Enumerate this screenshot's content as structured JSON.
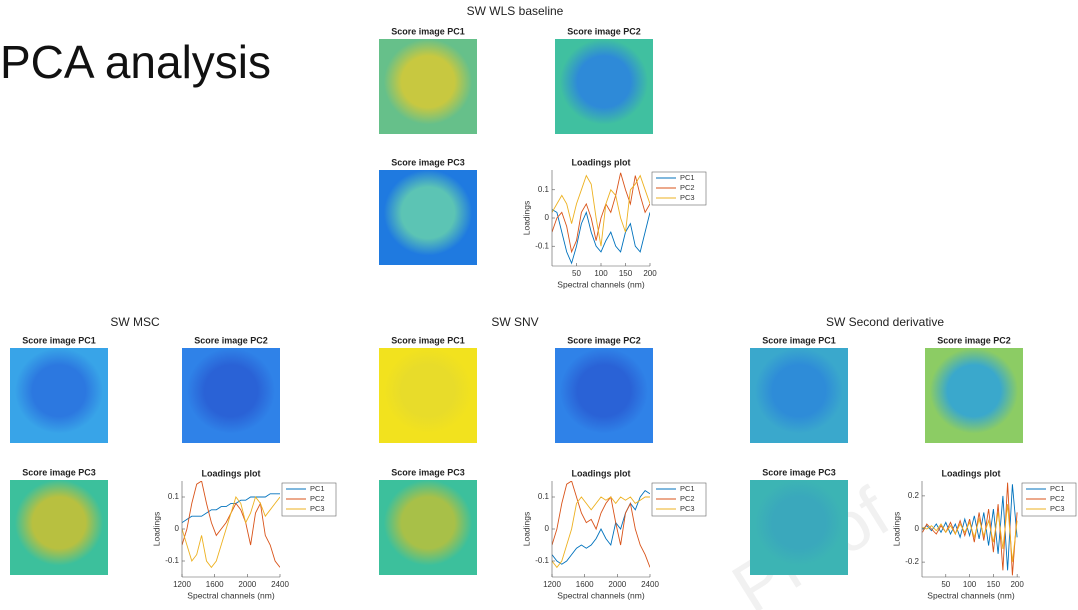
{
  "title": "PCA analysis",
  "watermark": "Proof",
  "panels": [
    {
      "title": "SW WLS baseline",
      "images": [
        "Score image PC1",
        "Score image PC2",
        "Score image PC3"
      ]
    },
    {
      "title": "SW MSC",
      "images": [
        "Score image PC1",
        "Score image PC2",
        "Score image PC3"
      ]
    },
    {
      "title": "SW SNV",
      "images": [
        "Score image PC1",
        "Score image PC2",
        "Score image PC3"
      ]
    },
    {
      "title": "SW Second derivative",
      "images": [
        "Score image PC1",
        "Score image PC2",
        "Score image PC3"
      ]
    }
  ],
  "chart_data": [
    {
      "type": "line",
      "title": "Loadings plot",
      "xlabel": "Spectral channels (nm)",
      "ylabel": "Loadings",
      "x": [
        0,
        10,
        20,
        30,
        40,
        50,
        60,
        70,
        80,
        90,
        100,
        110,
        120,
        130,
        140,
        150,
        160,
        170,
        180,
        190,
        200
      ],
      "xlim": [
        0,
        200
      ],
      "ylim": [
        -0.17,
        0.17
      ],
      "xticks": [
        50,
        100,
        150,
        200
      ],
      "yticks": [
        -0.1,
        0,
        0.1
      ],
      "legend": "right",
      "series": [
        {
          "name": "PC1",
          "color": "#0072bd",
          "values": [
            0.03,
            0.02,
            -0.05,
            -0.12,
            -0.16,
            -0.1,
            -0.02,
            0.02,
            -0.05,
            -0.1,
            -0.12,
            -0.08,
            -0.05,
            -0.1,
            -0.12,
            -0.05,
            -0.02,
            -0.1,
            -0.12,
            -0.05,
            0.02
          ]
        },
        {
          "name": "PC2",
          "color": "#d95319",
          "values": [
            -0.05,
            0.0,
            0.02,
            -0.03,
            -0.12,
            -0.08,
            0.02,
            0.05,
            0.0,
            -0.08,
            0.0,
            0.05,
            0.02,
            0.08,
            0.16,
            0.1,
            0.05,
            0.15,
            0.08,
            0.02,
            0.05
          ]
        },
        {
          "name": "PC3",
          "color": "#edb120",
          "values": [
            0.02,
            0.05,
            0.08,
            0.05,
            -0.02,
            0.05,
            0.1,
            0.15,
            0.12,
            0.0,
            -0.1,
            0.05,
            0.1,
            0.08,
            0.0,
            -0.05,
            0.1,
            0.12,
            0.15,
            0.1,
            0.05
          ]
        }
      ]
    },
    {
      "type": "line",
      "title": "Loadings plot",
      "xlabel": "Spectral channels (nm)",
      "ylabel": "Loadings",
      "x": [
        1200,
        1260,
        1320,
        1380,
        1440,
        1500,
        1560,
        1620,
        1680,
        1740,
        1800,
        1860,
        1920,
        1980,
        2040,
        2100,
        2160,
        2220,
        2280,
        2340,
        2400
      ],
      "xlim": [
        1200,
        2400
      ],
      "ylim": [
        -0.15,
        0.15
      ],
      "xticks": [
        1200,
        1600,
        2000,
        2400
      ],
      "yticks": [
        -0.1,
        0,
        0.1
      ],
      "legend": "right",
      "series": [
        {
          "name": "PC1",
          "color": "#0072bd",
          "values": [
            0.02,
            0.03,
            0.04,
            0.04,
            0.04,
            0.05,
            0.06,
            0.06,
            0.07,
            0.07,
            0.08,
            0.08,
            0.09,
            0.09,
            0.1,
            0.1,
            0.1,
            0.1,
            0.11,
            0.11,
            0.11
          ]
        },
        {
          "name": "PC2",
          "color": "#d95319",
          "values": [
            -0.05,
            0.0,
            0.08,
            0.14,
            0.15,
            0.08,
            0.02,
            -0.02,
            0.0,
            0.02,
            0.05,
            0.08,
            0.06,
            0.02,
            -0.05,
            0.05,
            0.08,
            -0.02,
            -0.05,
            -0.1,
            -0.12
          ]
        },
        {
          "name": "PC3",
          "color": "#edb120",
          "values": [
            0.0,
            -0.05,
            -0.1,
            -0.08,
            -0.02,
            -0.1,
            -0.12,
            -0.1,
            -0.05,
            0.0,
            0.05,
            0.1,
            0.08,
            0.02,
            0.05,
            0.1,
            0.08,
            0.04,
            0.06,
            0.08,
            0.1
          ]
        }
      ]
    },
    {
      "type": "line",
      "title": "Loadings plot",
      "xlabel": "Spectral channels (nm)",
      "ylabel": "Loadings",
      "x": [
        1200,
        1260,
        1320,
        1380,
        1440,
        1500,
        1560,
        1620,
        1680,
        1740,
        1800,
        1860,
        1920,
        1980,
        2040,
        2100,
        2160,
        2220,
        2280,
        2340,
        2400
      ],
      "xlim": [
        1200,
        2400
      ],
      "ylim": [
        -0.15,
        0.15
      ],
      "xticks": [
        1200,
        1600,
        2000,
        2400
      ],
      "yticks": [
        -0.1,
        0,
        0.1
      ],
      "legend": "right",
      "series": [
        {
          "name": "PC1",
          "color": "#0072bd",
          "values": [
            -0.08,
            -0.1,
            -0.11,
            -0.1,
            -0.08,
            -0.06,
            -0.05,
            -0.06,
            -0.05,
            -0.03,
            0.0,
            -0.03,
            -0.05,
            0.02,
            0.0,
            0.05,
            0.08,
            0.06,
            0.1,
            0.12,
            0.11
          ]
        },
        {
          "name": "PC2",
          "color": "#d95319",
          "values": [
            -0.05,
            0.0,
            0.08,
            0.14,
            0.15,
            0.1,
            0.05,
            0.02,
            0.03,
            0.0,
            0.05,
            0.08,
            0.1,
            0.02,
            -0.05,
            0.05,
            0.08,
            0.0,
            -0.05,
            -0.08,
            -0.12
          ]
        },
        {
          "name": "PC3",
          "color": "#edb120",
          "values": [
            -0.1,
            -0.12,
            -0.1,
            -0.05,
            0.0,
            0.08,
            0.1,
            0.08,
            0.06,
            0.08,
            0.1,
            0.09,
            0.1,
            0.08,
            0.1,
            0.09,
            0.1,
            0.08,
            0.09,
            0.1,
            0.1
          ]
        }
      ]
    },
    {
      "type": "line",
      "title": "Loadings plot",
      "xlabel": "Spectral channels (nm)",
      "ylabel": "Loadings",
      "x": [
        1,
        10,
        20,
        30,
        40,
        50,
        60,
        70,
        80,
        90,
        100,
        110,
        120,
        130,
        140,
        150,
        160,
        170,
        180,
        190,
        200
      ],
      "xlim": [
        0,
        206
      ],
      "ylim": [
        -0.29,
        0.29
      ],
      "xticks": [
        50,
        100,
        150,
        200
      ],
      "yticks": [
        -0.2,
        0,
        0.2
      ],
      "legend": "right",
      "series": [
        {
          "name": "PC1",
          "color": "#0072bd",
          "values": [
            0,
            0.02,
            -0.01,
            0.03,
            -0.02,
            0.04,
            -0.03,
            0.03,
            -0.05,
            0.06,
            -0.04,
            0.08,
            -0.06,
            0.1,
            -0.1,
            0.12,
            -0.15,
            0.2,
            -0.25,
            0.27,
            -0.05
          ]
        },
        {
          "name": "PC2",
          "color": "#d95319",
          "values": [
            -0.02,
            0.03,
            0,
            -0.03,
            0.02,
            -0.02,
            0.04,
            -0.03,
            0.05,
            -0.04,
            0.06,
            -0.08,
            0.1,
            -0.07,
            0.12,
            -0.14,
            0.15,
            -0.25,
            0.28,
            -0.28,
            0.1
          ]
        },
        {
          "name": "PC3",
          "color": "#edb120",
          "values": [
            0.01,
            0,
            0.02,
            -0.01,
            0.03,
            -0.02,
            0.02,
            -0.03,
            0.03,
            -0.02,
            0.04,
            -0.05,
            0.06,
            -0.04,
            0.05,
            -0.08,
            0.1,
            -0.12,
            0.15,
            -0.2,
            0.05
          ]
        }
      ]
    }
  ]
}
